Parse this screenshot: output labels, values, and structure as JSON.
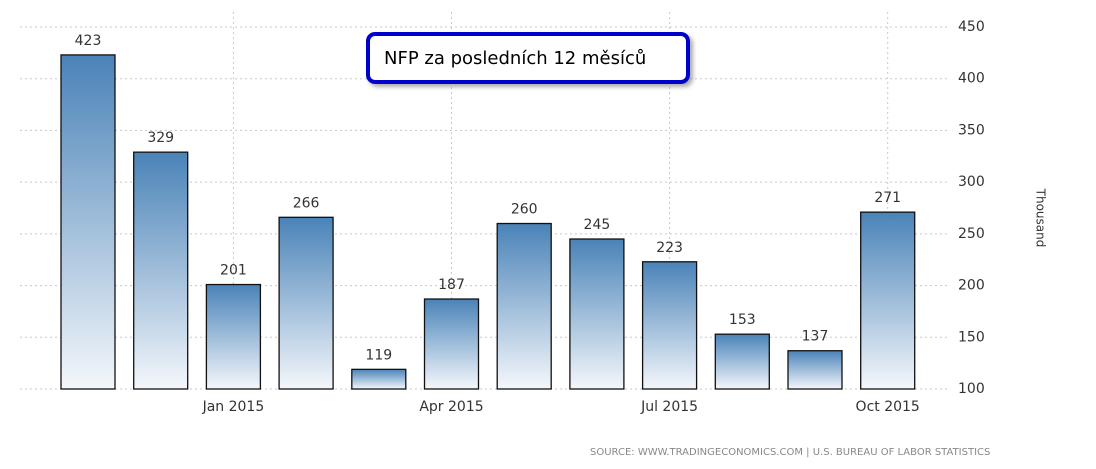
{
  "chart_data": {
    "type": "bar",
    "title": "NFP za posledních 12 měsíců",
    "y_axis_label": "Thousand",
    "source": "SOURCE: WWW.TRADINGECONOMICS.COM | U.S. BUREAU OF LABOR STATISTICS",
    "categories": [
      null,
      null,
      "Jan 2015",
      null,
      null,
      "Apr 2015",
      null,
      null,
      "Jul 2015",
      null,
      null,
      "Oct 2015"
    ],
    "values": [
      423,
      329,
      201,
      266,
      119,
      187,
      260,
      245,
      223,
      153,
      137,
      271
    ],
    "color": "#4a83b8",
    "ylim": [
      100,
      450
    ],
    "yticks": [
      100,
      150,
      200,
      250,
      300,
      350,
      400,
      450
    ],
    "grid": true
  }
}
